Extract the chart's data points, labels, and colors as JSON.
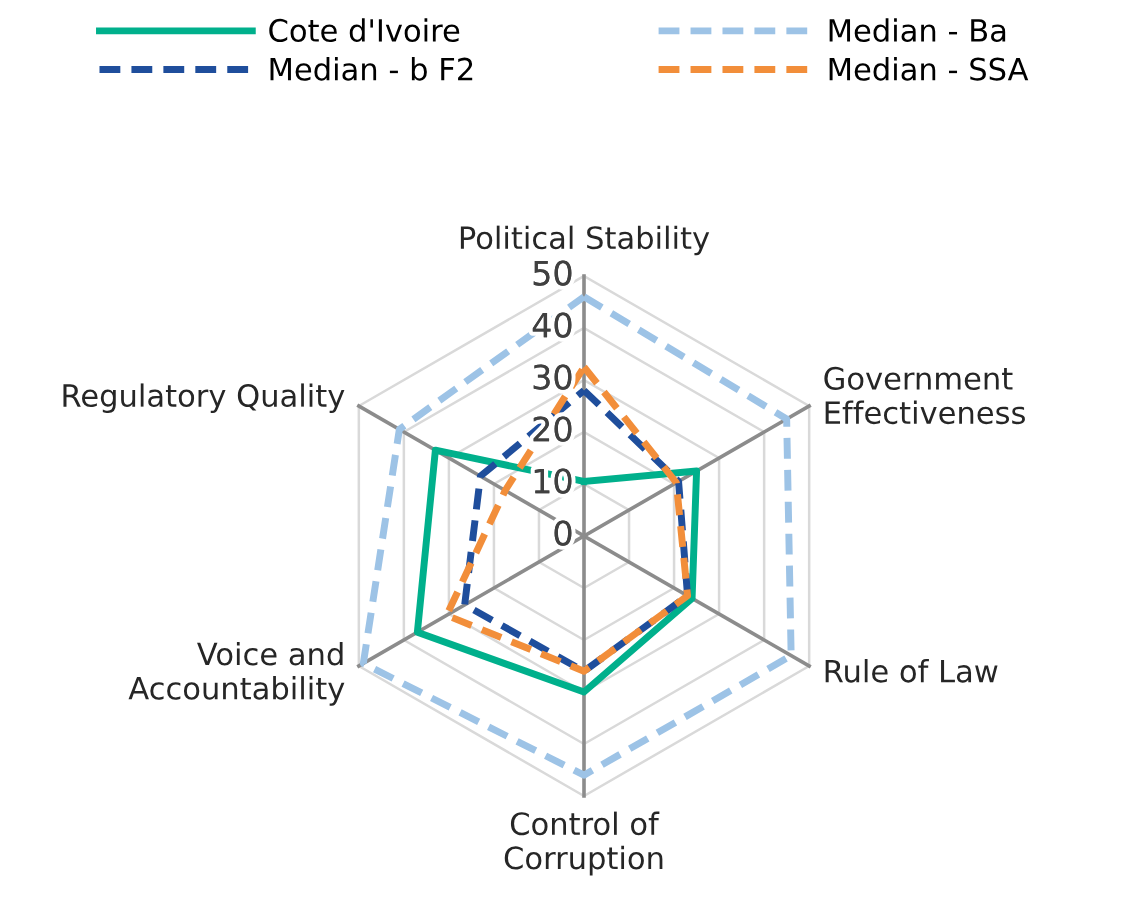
{
  "chart_data": {
    "type": "radar",
    "categories": [
      "Political Stability",
      "Government\nEffectiveness",
      "Rule of Law",
      "Control of\nCorruption",
      "Voice and\nAccountability",
      "Regulatory Quality"
    ],
    "series": [
      {
        "name": "Cote d'Ivoire",
        "color": "#00b08c",
        "line_style": "solid",
        "values": [
          10.5,
          25,
          24,
          30,
          37,
          33
        ]
      },
      {
        "name": "Median - b F2",
        "color": "#1f4e9c",
        "line_style": "dashed",
        "values": [
          28,
          21,
          23,
          26,
          26.5,
          23
        ]
      },
      {
        "name": "Median - Ba",
        "color": "#9dc3e6",
        "line_style": "dashed",
        "values": [
          46,
          45,
          46,
          46,
          49,
          41
        ]
      },
      {
        "name": "Median - SSA",
        "color": "#f28e3a",
        "line_style": "dashed",
        "values": [
          32.5,
          20.5,
          23,
          26,
          30.5,
          17.5
        ]
      }
    ],
    "ylim": [
      0,
      50
    ],
    "yticks": [
      0,
      10,
      20,
      30,
      40,
      50
    ],
    "grid": true,
    "legend": "top",
    "marker": "none"
  }
}
